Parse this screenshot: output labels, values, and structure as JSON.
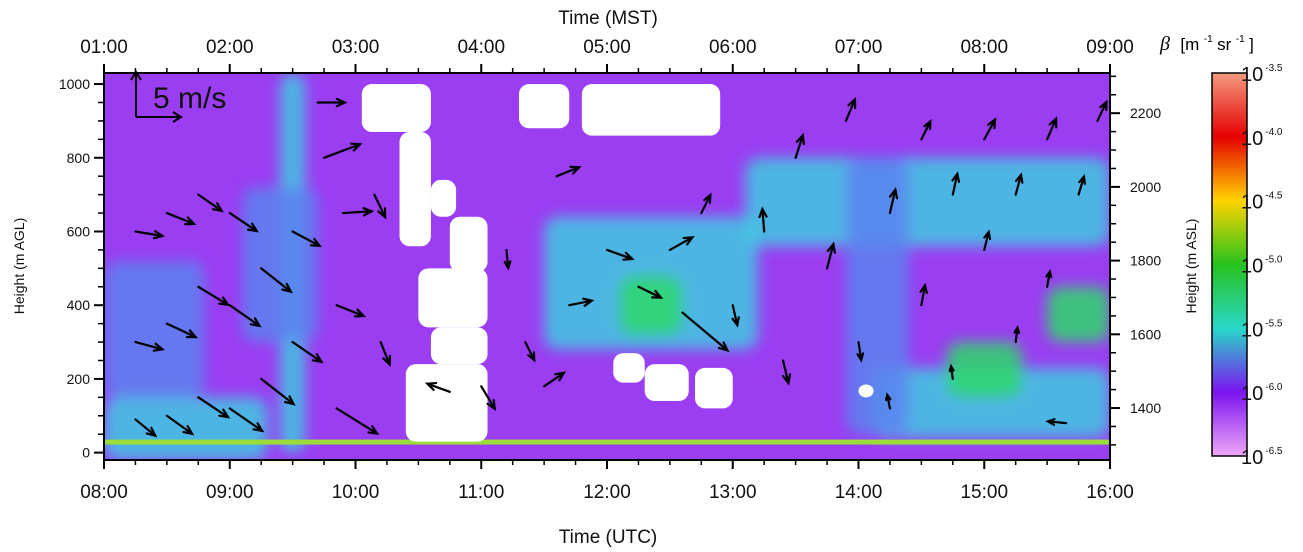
{
  "chart_data": {
    "type": "heatmap",
    "title": "",
    "top_axis": {
      "label": "Time (MST)",
      "ticks": [
        "01:00",
        "02:00",
        "03:00",
        "04:00",
        "05:00",
        "06:00",
        "07:00",
        "08:00",
        "09:00"
      ]
    },
    "bottom_axis": {
      "label": "Time (UTC)",
      "ticks": [
        "08:00",
        "09:00",
        "10:00",
        "11:00",
        "12:00",
        "13:00",
        "14:00",
        "15:00",
        "16:00"
      ],
      "range_hours": [
        8,
        16
      ]
    },
    "left_axis": {
      "label": "Height (m AGL)",
      "ticks": [
        0,
        200,
        400,
        600,
        800,
        1000
      ],
      "range": [
        -20,
        1030
      ]
    },
    "right_axis": {
      "label": "Height (m ASL)",
      "ticks": [
        1400,
        1600,
        1800,
        2000,
        2200
      ]
    },
    "colorbar": {
      "label_symbol": "β",
      "label_unit": "[m",
      "label_unit_exp1": "-1",
      "label_unit_mid": " sr",
      "label_unit_exp2": "-1",
      "label_unit_close": "]",
      "ticks": [
        {
          "base": "10",
          "exp": "-3.5",
          "value": -3.5
        },
        {
          "base": "10",
          "exp": "-4.0",
          "value": -4.0
        },
        {
          "base": "10",
          "exp": "-4.5",
          "value": -4.5
        },
        {
          "base": "10",
          "exp": "-5.0",
          "value": -5.0
        },
        {
          "base": "10",
          "exp": "-5.5",
          "value": -5.5
        },
        {
          "base": "10",
          "exp": "-6.0",
          "value": -6.0
        },
        {
          "base": "10",
          "exp": "-6.5",
          "value": -6.5
        }
      ],
      "colors": [
        "#f49a80",
        "#e60000",
        "#ffd400",
        "#27c21e",
        "#28d8c8",
        "#7b14f0",
        "#f0a8f8"
      ]
    },
    "scale_arrow": {
      "label": "5 m/s",
      "speed_ms": 5
    },
    "colors": {
      "background_violet": "#9b3ef2",
      "surface_cyan": "#3fcae0",
      "green_layer": "#2ed86a",
      "blue_mid": "#5c82ef",
      "missing": "#ffffff",
      "arrow": "#000000"
    },
    "field_regions": [
      {
        "kind": "cyan",
        "t": [
          8.0,
          9.3
        ],
        "z": [
          -20,
          150
        ]
      },
      {
        "kind": "blue",
        "t": [
          8.0,
          8.8
        ],
        "z": [
          150,
          520
        ]
      },
      {
        "kind": "cyan",
        "t": [
          9.4,
          9.6
        ],
        "z": [
          0,
          1030
        ]
      },
      {
        "kind": "blue",
        "t": [
          9.1,
          9.7
        ],
        "z": [
          300,
          720
        ]
      },
      {
        "kind": "cyan",
        "t": [
          11.5,
          13.2
        ],
        "z": [
          280,
          640
        ]
      },
      {
        "kind": "green",
        "t": [
          12.1,
          12.6
        ],
        "z": [
          320,
          480
        ]
      },
      {
        "kind": "cyan",
        "t": [
          13.1,
          16.0
        ],
        "z": [
          560,
          800
        ]
      },
      {
        "kind": "cyan",
        "t": [
          14.1,
          16.0
        ],
        "z": [
          40,
          230
        ]
      },
      {
        "kind": "green",
        "t": [
          14.7,
          15.3
        ],
        "z": [
          150,
          300
        ]
      },
      {
        "kind": "green",
        "t": [
          15.5,
          16.0
        ],
        "z": [
          300,
          450
        ]
      },
      {
        "kind": "blue",
        "t": [
          13.9,
          14.4
        ],
        "z": [
          50,
          800
        ]
      }
    ],
    "missing_regions": [
      {
        "t": [
          10.05,
          10.6
        ],
        "z": [
          870,
          1000
        ]
      },
      {
        "t": [
          10.35,
          10.6
        ],
        "z": [
          560,
          870
        ]
      },
      {
        "t": [
          10.6,
          10.8
        ],
        "z": [
          640,
          740
        ]
      },
      {
        "t": [
          10.75,
          11.05
        ],
        "z": [
          490,
          640
        ]
      },
      {
        "t": [
          10.5,
          11.05
        ],
        "z": [
          340,
          500
        ]
      },
      {
        "t": [
          10.4,
          11.05
        ],
        "z": [
          30,
          240
        ]
      },
      {
        "t": [
          10.6,
          11.05
        ],
        "z": [
          240,
          340
        ]
      },
      {
        "t": [
          11.3,
          11.7
        ],
        "z": [
          880,
          1000
        ]
      },
      {
        "t": [
          11.8,
          12.9
        ],
        "z": [
          860,
          1000
        ]
      },
      {
        "t": [
          12.05,
          12.3
        ],
        "z": [
          190,
          270
        ]
      },
      {
        "t": [
          12.3,
          12.65
        ],
        "z": [
          140,
          240
        ]
      },
      {
        "t": [
          12.7,
          13.0
        ],
        "z": [
          120,
          230
        ]
      },
      {
        "t": [
          14.0,
          14.12
        ],
        "z": [
          150,
          185
        ]
      }
    ],
    "surface_band_z": 30,
    "wind_arrows": [
      {
        "t": 8.25,
        "z": 90,
        "u": 2.2,
        "v": -1.8
      },
      {
        "t": 8.25,
        "z": 300,
        "u": 3.0,
        "v": -0.8
      },
      {
        "t": 8.25,
        "z": 600,
        "u": 3.0,
        "v": -0.5
      },
      {
        "t": 8.5,
        "z": 100,
        "u": 2.8,
        "v": -2.0
      },
      {
        "t": 8.5,
        "z": 350,
        "u": 3.2,
        "v": -1.5
      },
      {
        "t": 8.5,
        "z": 650,
        "u": 3.0,
        "v": -1.2
      },
      {
        "t": 8.75,
        "z": 150,
        "u": 3.3,
        "v": -2.2
      },
      {
        "t": 8.75,
        "z": 450,
        "u": 3.3,
        "v": -2.0
      },
      {
        "t": 8.75,
        "z": 700,
        "u": 2.6,
        "v": -1.8
      },
      {
        "t": 9.0,
        "z": 120,
        "u": 3.6,
        "v": -2.5
      },
      {
        "t": 9.0,
        "z": 400,
        "u": 3.3,
        "v": -2.3
      },
      {
        "t": 9.0,
        "z": 650,
        "u": 3.0,
        "v": -2.0
      },
      {
        "t": 9.25,
        "z": 200,
        "u": 3.6,
        "v": -2.8
      },
      {
        "t": 9.25,
        "z": 500,
        "u": 3.3,
        "v": -2.6
      },
      {
        "t": 9.5,
        "z": 300,
        "u": 3.2,
        "v": -2.2
      },
      {
        "t": 9.5,
        "z": 600,
        "u": 3.0,
        "v": -1.6
      },
      {
        "t": 9.7,
        "z": 950,
        "u": 3.0,
        "v": 0.0
      },
      {
        "t": 9.75,
        "z": 800,
        "u": 4.0,
        "v": 1.5
      },
      {
        "t": 9.9,
        "z": 650,
        "u": 3.2,
        "v": 0.2
      },
      {
        "t": 9.85,
        "z": 400,
        "u": 3.0,
        "v": -1.2
      },
      {
        "t": 9.85,
        "z": 120,
        "u": 4.5,
        "v": -2.8
      },
      {
        "t": 10.2,
        "z": 300,
        "u": 1.0,
        "v": -2.5
      },
      {
        "t": 10.15,
        "z": 700,
        "u": 1.2,
        "v": -2.5
      },
      {
        "t": 10.75,
        "z": 165,
        "u": -2.5,
        "v": 0.9
      },
      {
        "t": 11.0,
        "z": 180,
        "u": 1.5,
        "v": -2.5
      },
      {
        "t": 11.2,
        "z": 550,
        "u": 0.2,
        "v": -2.0
      },
      {
        "t": 11.35,
        "z": 300,
        "u": 1.0,
        "v": -2.0
      },
      {
        "t": 11.5,
        "z": 180,
        "u": 2.2,
        "v": 1.5
      },
      {
        "t": 11.6,
        "z": 750,
        "u": 2.5,
        "v": 1.0
      },
      {
        "t": 11.7,
        "z": 400,
        "u": 2.5,
        "v": 0.5
      },
      {
        "t": 12.0,
        "z": 550,
        "u": 2.8,
        "v": -1.0
      },
      {
        "t": 12.25,
        "z": 450,
        "u": 2.5,
        "v": -1.2
      },
      {
        "t": 12.5,
        "z": 550,
        "u": 2.5,
        "v": 1.4
      },
      {
        "t": 12.6,
        "z": 380,
        "u": 5.0,
        "v": -4.2
      },
      {
        "t": 12.75,
        "z": 650,
        "u": 1.0,
        "v": 2.0
      },
      {
        "t": 13.0,
        "z": 400,
        "u": 0.5,
        "v": -2.2
      },
      {
        "t": 13.25,
        "z": 600,
        "u": -0.2,
        "v": 2.5
      },
      {
        "t": 13.4,
        "z": 250,
        "u": 0.6,
        "v": -2.5
      },
      {
        "t": 13.5,
        "z": 800,
        "u": 0.8,
        "v": 2.5
      },
      {
        "t": 13.75,
        "z": 500,
        "u": 0.7,
        "v": 2.7
      },
      {
        "t": 13.9,
        "z": 900,
        "u": 1.0,
        "v": 2.4
      },
      {
        "t": 14.0,
        "z": 300,
        "u": 0.3,
        "v": -2.0
      },
      {
        "t": 14.25,
        "z": 650,
        "u": 0.6,
        "v": 2.6
      },
      {
        "t": 14.25,
        "z": 120,
        "u": -0.3,
        "v": 1.5
      },
      {
        "t": 14.5,
        "z": 850,
        "u": 1.0,
        "v": 2.0
      },
      {
        "t": 14.5,
        "z": 400,
        "u": 0.4,
        "v": 2.2
      },
      {
        "t": 14.75,
        "z": 700,
        "u": 0.5,
        "v": 2.3
      },
      {
        "t": 14.75,
        "z": 200,
        "u": -0.2,
        "v": 1.4
      },
      {
        "t": 15.0,
        "z": 550,
        "u": 0.5,
        "v": 2.0
      },
      {
        "t": 15.0,
        "z": 850,
        "u": 1.2,
        "v": 2.2
      },
      {
        "t": 15.25,
        "z": 700,
        "u": 0.6,
        "v": 2.2
      },
      {
        "t": 15.25,
        "z": 300,
        "u": 0.2,
        "v": 1.6
      },
      {
        "t": 15.5,
        "z": 850,
        "u": 1.0,
        "v": 2.3
      },
      {
        "t": 15.5,
        "z": 450,
        "u": 0.3,
        "v": 1.7
      },
      {
        "t": 15.65,
        "z": 80,
        "u": -2.0,
        "v": 0.2
      },
      {
        "t": 15.75,
        "z": 700,
        "u": 0.6,
        "v": 2.0
      },
      {
        "t": 15.9,
        "z": 900,
        "u": 1.0,
        "v": 2.1
      }
    ]
  }
}
